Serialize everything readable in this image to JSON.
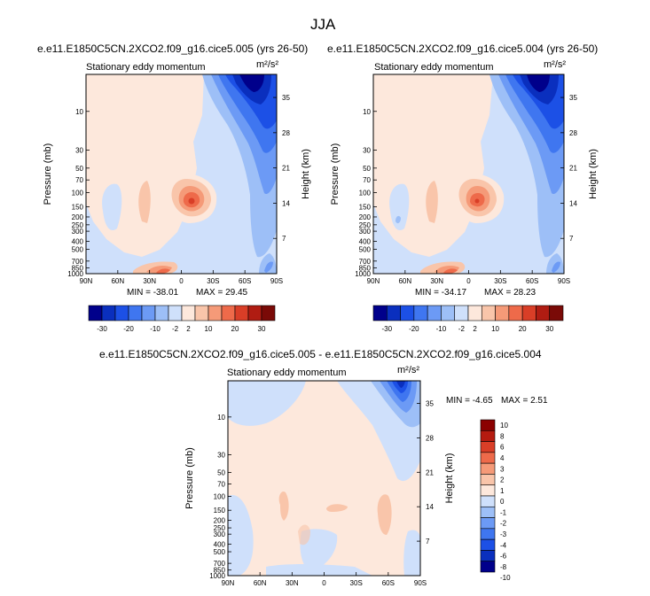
{
  "figure": {
    "title": "JJA"
  },
  "chart_data": [
    {
      "type": "heatmap",
      "title": "e.e11.E1850C5CN.2XCO2.f09_g16.cice5.005 (yrs 26-50)",
      "subtitle": "Stationary eddy momentum",
      "units": "m²/s²",
      "xlabel": "",
      "ylabel": "Pressure (mb)",
      "ylabel_right": "Height (km)",
      "x_ticks": [
        "90N",
        "60N",
        "30N",
        "0",
        "30S",
        "60S",
        "90S"
      ],
      "y_ticks": [
        "10",
        "30",
        "50",
        "70",
        "100",
        "150",
        "200",
        "250",
        "300",
        "400",
        "500",
        "700",
        "850",
        "1000"
      ],
      "y_ticks_right": [
        "35",
        "28",
        "21",
        "14",
        "7"
      ],
      "min_label": "MIN = -38.01",
      "max_label": "MAX = 29.45",
      "min": -38.01,
      "max": 29.45,
      "colorbar_labels": [
        "-30",
        "-20",
        "-10",
        "-2",
        "2",
        "10",
        "20",
        "30"
      ]
    },
    {
      "type": "heatmap",
      "title": "e.e11.E1850C5CN.2XCO2.f09_g16.cice5.004 (yrs 26-50)",
      "subtitle": "Stationary eddy momentum",
      "units": "m²/s²",
      "xlabel": "",
      "ylabel": "Pressure (mb)",
      "ylabel_right": "Height (km)",
      "x_ticks": [
        "90N",
        "60N",
        "30N",
        "0",
        "30S",
        "60S",
        "90S"
      ],
      "y_ticks": [
        "10",
        "30",
        "50",
        "70",
        "100",
        "150",
        "200",
        "250",
        "300",
        "400",
        "500",
        "700",
        "850",
        "1000"
      ],
      "y_ticks_right": [
        "35",
        "28",
        "21",
        "14",
        "7"
      ],
      "min_label": "MIN = -34.17",
      "max_label": "MAX = 28.23",
      "min": -34.17,
      "max": 28.23,
      "colorbar_labels": [
        "-30",
        "-20",
        "-10",
        "-2",
        "2",
        "10",
        "20",
        "30"
      ]
    },
    {
      "type": "heatmap",
      "title": "e.e11.E1850C5CN.2XCO2.f09_g16.cice5.005 - e.e11.E1850C5CN.2XCO2.f09_g16.cice5.004",
      "subtitle": "Stationary eddy momentum",
      "units": "m²/s²",
      "xlabel": "",
      "ylabel": "Pressure (mb)",
      "ylabel_right": "Height (km)",
      "x_ticks": [
        "90N",
        "60N",
        "30N",
        "0",
        "30S",
        "60S",
        "90S"
      ],
      "y_ticks": [
        "10",
        "30",
        "50",
        "70",
        "100",
        "150",
        "200",
        "250",
        "300",
        "400",
        "500",
        "700",
        "850",
        "1000"
      ],
      "y_ticks_right": [
        "35",
        "28",
        "21",
        "14",
        "7"
      ],
      "min_label": "MIN = -4.65",
      "max_label": "MAX =  2.51",
      "min": -4.65,
      "max": 2.51,
      "colorbar_labels": [
        "10",
        "8",
        "6",
        "4",
        "3",
        "2",
        "1",
        "0",
        "-1",
        "-2",
        "-3",
        "-4",
        "-6",
        "-8",
        "-10"
      ]
    }
  ],
  "colors": {
    "top_colorbar": [
      "#00008b",
      "#0a2fbe",
      "#1c50e6",
      "#3f76f0",
      "#6c9af5",
      "#9dbff7",
      "#cfe0fb",
      "#fde8dc",
      "#f9c5aa",
      "#f59a78",
      "#ee6a4a",
      "#d93e27",
      "#b01c12",
      "#7a0a07"
    ],
    "diff_colorbar": [
      "#8b0000",
      "#b51b10",
      "#d93e27",
      "#ee6a4a",
      "#f59a78",
      "#f9c5aa",
      "#fde8dc",
      "#cfe0fb",
      "#9dbff7",
      "#6c9af5",
      "#3f76f0",
      "#1c50e6",
      "#0a2fbe",
      "#00008b"
    ]
  }
}
